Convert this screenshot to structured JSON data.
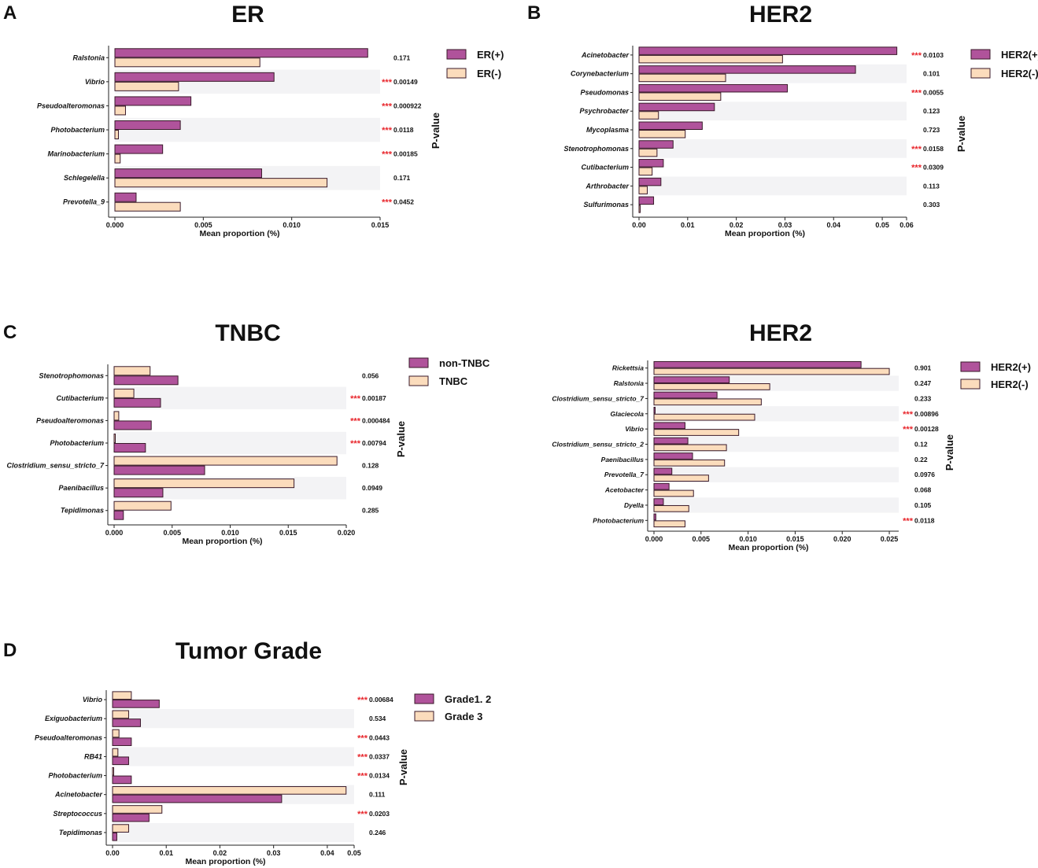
{
  "colors": {
    "group1_fill": "#b0539b",
    "group2_fill": "#fbdcbc",
    "bar_stroke": "#3a1a2a",
    "band": "#f3f3f5",
    "significance": "#e8262c",
    "text": "#111111"
  },
  "chart_data": [
    {
      "type": "bar",
      "orientation": "horizontal",
      "panel_label": "A",
      "title": "ER",
      "xlabel": "Mean proportion (%)",
      "pvalue_label": "P-value",
      "legend_position": "top-right",
      "legend_order": [
        0,
        1
      ],
      "xlim": [
        0,
        0.015
      ],
      "ticks": [
        0,
        0.005,
        0.01,
        0.015
      ],
      "tick_labels": [
        "0.000",
        "0.005",
        "0.010",
        "0.015"
      ],
      "categories": [
        "Ralstonia",
        "Vibrio",
        "Pseudoalteromonas",
        "Photobacterium",
        "Marinobacterium",
        "Schlegelella",
        "Prevotella_9"
      ],
      "series": [
        {
          "name": "ER(+)",
          "values": [
            0.0143,
            0.009,
            0.0043,
            0.0037,
            0.0027,
            0.0083,
            0.0012
          ]
        },
        {
          "name": "ER(-)",
          "values": [
            0.0082,
            0.0036,
            0.0006,
            0.0002,
            0.0003,
            0.012,
            0.0037
          ]
        }
      ],
      "pvalues": [
        "0.171",
        "0.00149",
        "0.000922",
        "0.0118",
        "0.00185",
        "0.171",
        "0.0452"
      ],
      "significance": [
        "",
        "***",
        "***",
        "***",
        "***",
        "",
        "***"
      ]
    },
    {
      "type": "bar",
      "orientation": "horizontal",
      "panel_label": "B",
      "title": "HER2",
      "xlabel": "Mean proportion (%)",
      "pvalue_label": "P-value",
      "legend_position": "top-right",
      "legend_order": [
        0,
        1
      ],
      "xlim": [
        0,
        0.055
      ],
      "ticks": [
        0,
        0.01,
        0.02,
        0.03,
        0.04,
        0.05,
        0.055
      ],
      "tick_labels": [
        "0.00",
        "0.01",
        "0.02",
        "0.03",
        "0.04",
        "0.05",
        "0.06"
      ],
      "categories": [
        "Acinetobacter",
        "Corynebacterium",
        "Pseudomonas",
        "Psychrobacter",
        "Mycoplasma",
        "Stenotrophomonas",
        "Cutibacterium",
        "Arthrobacter",
        "Sulfurimonas"
      ],
      "series": [
        {
          "name": "HER2(+)",
          "values": [
            0.053,
            0.0445,
            0.0305,
            0.0155,
            0.013,
            0.007,
            0.005,
            0.0045,
            0.003
          ]
        },
        {
          "name": "HER2(-)",
          "values": [
            0.0295,
            0.0178,
            0.0168,
            0.004,
            0.0095,
            0.0037,
            0.0027,
            0.0017,
            0.0002
          ]
        }
      ],
      "pvalues": [
        "0.0103",
        "0.101",
        "0.0055",
        "0.123",
        "0.723",
        "0.0158",
        "0.0309",
        "0.113",
        "0.303"
      ],
      "significance": [
        "***",
        "",
        "***",
        "",
        "",
        "***",
        "***",
        "",
        ""
      ]
    },
    {
      "type": "bar",
      "orientation": "horizontal",
      "panel_label": "C",
      "title": "TNBC",
      "xlabel": "Mean proportion (%)",
      "pvalue_label": "P-value",
      "legend_position": "top-right",
      "legend_order": [
        1,
        0
      ],
      "xlim": [
        0,
        0.02
      ],
      "ticks": [
        0,
        0.005,
        0.01,
        0.015,
        0.02
      ],
      "tick_labels": [
        "0.000",
        "0.005",
        "0.010",
        "0.015",
        "0.020"
      ],
      "categories": [
        "Stenotrophomonas",
        "Cutibacterium",
        "Pseudoalteromonas",
        "Photobacterium",
        "Clostridium_sensu_stricto_7",
        "Paenibacillus",
        "Tepidimonas"
      ],
      "series": [
        {
          "name": "TNBC",
          "values": [
            0.0031,
            0.0017,
            0.0004,
            0.0001,
            0.0192,
            0.0155,
            0.0049
          ]
        },
        {
          "name": "non-TNBC",
          "values": [
            0.0055,
            0.004,
            0.0032,
            0.0027,
            0.0078,
            0.0042,
            0.0008
          ]
        }
      ],
      "pvalues": [
        "0.056",
        "0.00187",
        "0.000484",
        "0.00794",
        "0.128",
        "0.0949",
        "0.285"
      ],
      "significance": [
        "",
        "***",
        "***",
        "***",
        "",
        "",
        ""
      ]
    },
    {
      "type": "bar",
      "orientation": "horizontal",
      "panel_label": "",
      "title": "HER2",
      "xlabel": "Mean proportion (%)",
      "pvalue_label": "P-value",
      "legend_position": "top-right",
      "legend_order": [
        0,
        1
      ],
      "xlim": [
        0,
        0.026
      ],
      "ticks": [
        0,
        0.005,
        0.01,
        0.015,
        0.02,
        0.025
      ],
      "tick_labels": [
        "0.000",
        "0.005",
        "0.010",
        "0.015",
        "0.020",
        "0.025"
      ],
      "categories": [
        "Rickettsia",
        "Ralstonia",
        "Clostridium_sensu_stricto_7",
        "Glaciecola",
        "Vibrio",
        "Clostridium_sensu_stricto_2",
        "Paenibacillus",
        "Prevotella_7",
        "Acetobacter",
        "Dyella",
        "Photobacterium"
      ],
      "series": [
        {
          "name": "HER2(+)",
          "values": [
            0.022,
            0.008,
            0.0067,
            0.0001,
            0.0033,
            0.0036,
            0.0041,
            0.0019,
            0.0016,
            0.001,
            0.0002
          ]
        },
        {
          "name": "HER2(-)",
          "values": [
            0.025,
            0.0123,
            0.0114,
            0.0107,
            0.009,
            0.0077,
            0.0075,
            0.0058,
            0.0042,
            0.0037,
            0.0033
          ]
        }
      ],
      "pvalues": [
        "0.901",
        "0.247",
        "0.233",
        "0.00896",
        "0.00128",
        "0.12",
        "0.22",
        "0.0976",
        "0.068",
        "0.105",
        "0.0118"
      ],
      "significance": [
        "",
        "",
        "",
        "***",
        "***",
        "",
        "",
        "",
        "",
        "",
        "***"
      ]
    },
    {
      "type": "bar",
      "orientation": "horizontal",
      "panel_label": "D",
      "title": "Tumor Grade",
      "xlabel": "Mean proportion (%)",
      "pvalue_label": "P-value",
      "legend_position": "top-right",
      "legend_order": [
        1,
        0
      ],
      "xlim": [
        0,
        0.045
      ],
      "ticks": [
        0,
        0.01,
        0.02,
        0.03,
        0.04,
        0.045
      ],
      "tick_labels": [
        "0.00",
        "0.01",
        "0.02",
        "0.03",
        "0.04",
        "0.05"
      ],
      "categories": [
        "Vibrio",
        "Exiguobacterium",
        "Pseudoalteromonas",
        "RB41",
        "Photobacterium",
        "Acinetobacter",
        "Streptococcus",
        "Tepidimonas"
      ],
      "series": [
        {
          "name": "Grade 3",
          "values": [
            0.0035,
            0.003,
            0.0012,
            0.001,
            0.0002,
            0.0435,
            0.0092,
            0.003
          ]
        },
        {
          "name": "Grade1. 2",
          "values": [
            0.0087,
            0.0052,
            0.0035,
            0.003,
            0.0035,
            0.0315,
            0.0068,
            0.0008
          ]
        }
      ],
      "pvalues": [
        "0.00684",
        "0.534",
        "0.0443",
        "0.0337",
        "0.0134",
        "0.111",
        "0.0203",
        "0.246"
      ],
      "significance": [
        "***",
        "",
        "***",
        "***",
        "***",
        "",
        "***",
        ""
      ]
    }
  ]
}
